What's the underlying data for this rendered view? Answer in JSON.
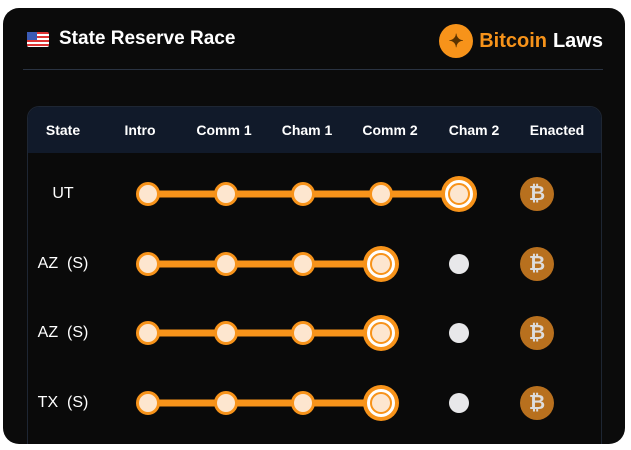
{
  "header": {
    "title": "State Reserve Race",
    "brand_accent": "Bitcoin",
    "brand_rest": "Laws",
    "flag_icon": "us-flag-icon"
  },
  "colors": {
    "accent": "#f7931a",
    "background": "#0b0b0b",
    "header_row": "#111a2a"
  },
  "table": {
    "columns": [
      "State",
      "Intro",
      "Comm 1",
      "Cham 1",
      "Comm 2",
      "Cham 2",
      "Enacted"
    ],
    "stages": [
      "Intro",
      "Comm 1",
      "Cham 1",
      "Comm 2",
      "Cham 2",
      "Enacted"
    ],
    "rows": [
      {
        "state": "UT",
        "current_stage": "Cham 2"
      },
      {
        "state": "AZ  (S)",
        "current_stage": "Comm 2"
      },
      {
        "state": "AZ  (S)",
        "current_stage": "Comm 2"
      },
      {
        "state": "TX  (S)",
        "current_stage": "Comm 2"
      }
    ],
    "enacted_symbol": "₿"
  }
}
